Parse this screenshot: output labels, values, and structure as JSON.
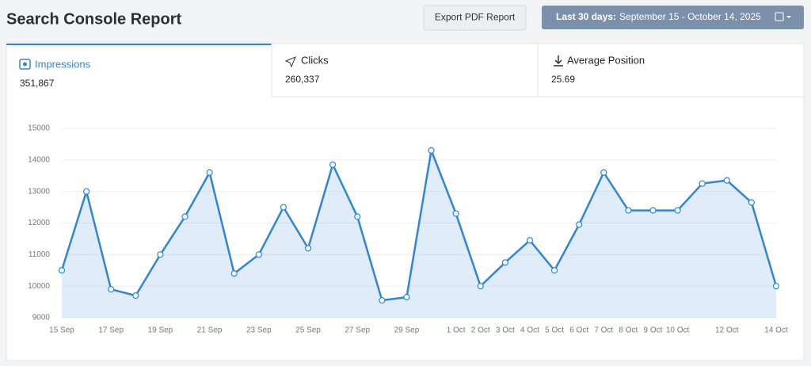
{
  "header": {
    "title": "Search Console Report",
    "export_button": "Export PDF Report",
    "date_range": {
      "label": "Last 30 days:",
      "range": "September 15 - October 14, 2025"
    }
  },
  "tabs": [
    {
      "label": "Impressions",
      "value": "351,867",
      "active": true
    },
    {
      "label": "Clicks",
      "value": "260,337"
    },
    {
      "label": "Average Position",
      "value": "25.69"
    }
  ],
  "chart_data": {
    "type": "line",
    "categories": [
      "15 Sep",
      null,
      "17 Sep",
      null,
      "19 Sep",
      null,
      "21 Sep",
      null,
      "23 Sep",
      null,
      "25 Sep",
      null,
      "27 Sep",
      null,
      "29 Sep",
      null,
      "1 Oct",
      "2 Oct",
      "3 Oct",
      "4 Oct",
      "5 Oct",
      "6 Oct",
      "7 Oct",
      "8 Oct",
      "9 Oct",
      "10 Oct",
      null,
      "12 Oct",
      null,
      "14 Oct"
    ],
    "values": [
      10500,
      13000,
      9900,
      9700,
      11000,
      12200,
      13600,
      10400,
      11000,
      12500,
      11200,
      13850,
      12200,
      9550,
      9650,
      14300,
      12300,
      10000,
      10750,
      11450,
      10500,
      11950,
      13600,
      12400,
      12400,
      12400,
      13250,
      13350,
      12650,
      10000
    ],
    "color": "#2f86d6",
    "ylim": [
      9000,
      15000
    ],
    "yticks": [
      9000,
      10000,
      11000,
      12000,
      13000,
      14000,
      15000
    ],
    "grid": true
  }
}
